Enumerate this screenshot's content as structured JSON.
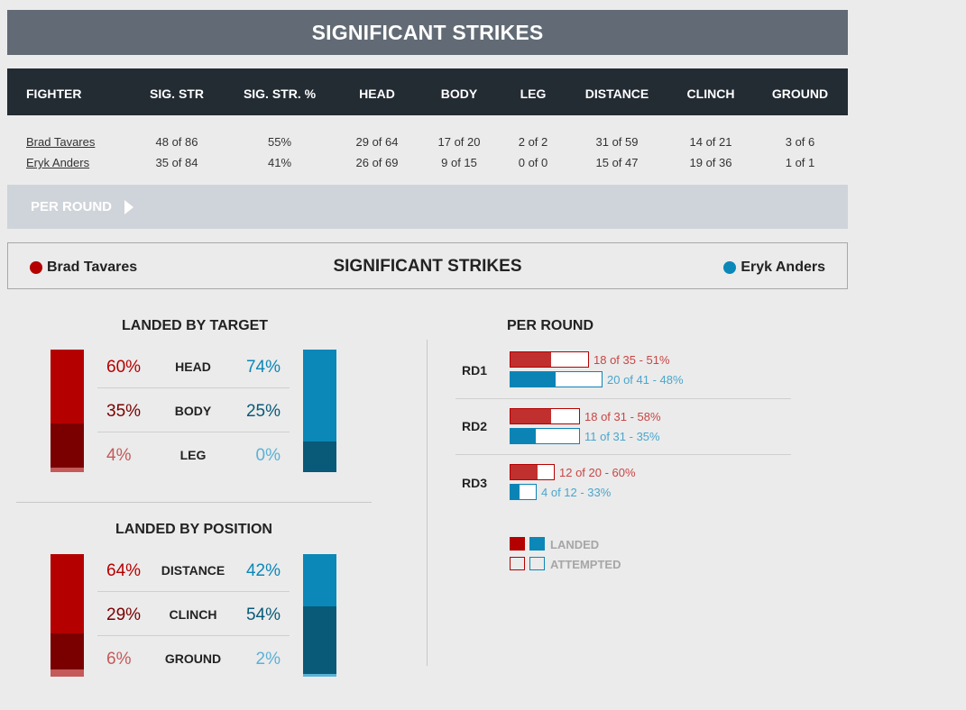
{
  "title": "SIGNIFICANT STRIKES",
  "table": {
    "headers": [
      "FIGHTER",
      "SIG. STR",
      "SIG. STR. %",
      "HEAD",
      "BODY",
      "LEG",
      "DISTANCE",
      "CLINCH",
      "GROUND"
    ],
    "rows": [
      {
        "fighter": "Brad Tavares",
        "sig_str": "48 of 86",
        "sig_str_pct": "55%",
        "head": "29 of 64",
        "body": "17 of 20",
        "leg": "2 of 2",
        "distance": "31 of 59",
        "clinch": "14 of 21",
        "ground": "3 of 6"
      },
      {
        "fighter": "Eryk Anders",
        "sig_str": "35 of 84",
        "sig_str_pct": "41%",
        "head": "26 of 69",
        "body": "9 of 15",
        "leg": "0 of 0",
        "distance": "15 of 47",
        "clinch": "19 of 36",
        "ground": "1 of 1"
      }
    ]
  },
  "per_round_toggle": "PER ROUND",
  "legend": {
    "left_fighter": "Brad Tavares",
    "right_fighter": "Eryk Anders",
    "title": "SIGNIFICANT STRIKES"
  },
  "colors": {
    "red_main": "#b50000",
    "red_dark": "#7a0000",
    "red_light": "#c45a5a",
    "blue_main": "#0b87b8",
    "blue_dark": "#085a78",
    "blue_light": "#5ab2d6"
  },
  "landed_by_target": {
    "title": "LANDED BY TARGET",
    "rows": [
      {
        "label": "HEAD",
        "left": "60%",
        "right": "74%",
        "left_value": 60,
        "right_value": 74
      },
      {
        "label": "BODY",
        "left": "35%",
        "right": "25%",
        "left_value": 35,
        "right_value": 25
      },
      {
        "label": "LEG",
        "left": "4%",
        "right": "0%",
        "left_value": 4,
        "right_value": 0
      }
    ]
  },
  "landed_by_position": {
    "title": "LANDED BY POSITION",
    "rows": [
      {
        "label": "DISTANCE",
        "left": "64%",
        "right": "42%",
        "left_value": 64,
        "right_value": 42
      },
      {
        "label": "CLINCH",
        "left": "29%",
        "right": "54%",
        "left_value": 29,
        "right_value": 54
      },
      {
        "label": "GROUND",
        "left": "6%",
        "right": "2%",
        "left_value": 6,
        "right_value": 2
      }
    ]
  },
  "per_round": {
    "title": "PER ROUND",
    "rounds": [
      {
        "label": "RD1",
        "red": {
          "landed": 18,
          "attempted": 35,
          "text": "18 of 35 - 51%"
        },
        "blue": {
          "landed": 20,
          "attempted": 41,
          "text": "20 of 41 - 48%"
        }
      },
      {
        "label": "RD2",
        "red": {
          "landed": 18,
          "attempted": 31,
          "text": "18 of 31 - 58%"
        },
        "blue": {
          "landed": 11,
          "attempted": 31,
          "text": "11 of 31 - 35%"
        }
      },
      {
        "label": "RD3",
        "red": {
          "landed": 12,
          "attempted": 20,
          "text": "12 of 20 - 60%"
        },
        "blue": {
          "landed": 4,
          "attempted": 12,
          "text": "4 of 12 - 33%"
        }
      }
    ],
    "key": {
      "landed": "LANDED",
      "attempted": "ATTEMPTED"
    }
  }
}
